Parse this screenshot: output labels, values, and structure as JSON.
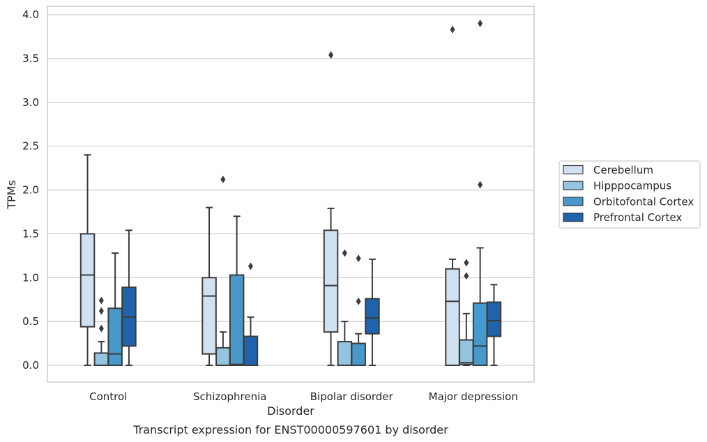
{
  "chart_data": {
    "type": "box",
    "xlabel": "Disorder",
    "ylabel": "TPMs",
    "caption": "Transcript expression for ENST00000597601 by disorder",
    "ylim": [
      -0.18,
      4.1
    ],
    "yticks": [
      "0.0",
      "0.5",
      "1.0",
      "1.5",
      "2.0",
      "2.5",
      "3.0",
      "3.5",
      "4.0"
    ],
    "grid": true,
    "legend_position": "right",
    "categories": [
      "Control",
      "Schizophrenia",
      "Bipolar disorder",
      "Major depression"
    ],
    "series": [
      {
        "name": "Cerebellum",
        "color": "#d0e1f2",
        "boxes": [
          {
            "whisker_low": 0.0,
            "q1": 0.44,
            "median": 1.03,
            "q3": 1.5,
            "whisker_high": 2.4,
            "outliers": []
          },
          {
            "whisker_low": 0.0,
            "q1": 0.13,
            "median": 0.79,
            "q3": 1.0,
            "whisker_high": 1.8,
            "outliers": []
          },
          {
            "whisker_low": 0.0,
            "q1": 0.38,
            "median": 0.91,
            "q3": 1.54,
            "whisker_high": 1.79,
            "outliers": [
              3.54
            ]
          },
          {
            "whisker_low": 0.0,
            "q1": 0.0,
            "median": 0.73,
            "q3": 1.1,
            "whisker_high": 1.21,
            "outliers": [
              3.83
            ]
          }
        ]
      },
      {
        "name": "Hipppocampus",
        "color": "#94c4df",
        "boxes": [
          {
            "whisker_low": 0.0,
            "q1": 0.0,
            "median": 0.0,
            "q3": 0.14,
            "whisker_high": 0.27,
            "outliers": [
              0.42,
              0.62,
              0.74
            ]
          },
          {
            "whisker_low": 0.0,
            "q1": 0.0,
            "median": 0.0,
            "q3": 0.2,
            "whisker_high": 0.38,
            "outliers": [
              2.12
            ]
          },
          {
            "whisker_low": 0.0,
            "q1": 0.0,
            "median": 0.0,
            "q3": 0.27,
            "whisker_high": 0.5,
            "outliers": [
              1.28
            ]
          },
          {
            "whisker_low": 0.0,
            "q1": 0.01,
            "median": 0.03,
            "q3": 0.29,
            "whisker_high": 0.59,
            "outliers": [
              1.02,
              1.17
            ]
          }
        ]
      },
      {
        "name": "Orbitofontal Cortex",
        "color": "#4a98c9",
        "boxes": [
          {
            "whisker_low": 0.0,
            "q1": 0.0,
            "median": 0.13,
            "q3": 0.65,
            "whisker_high": 1.28,
            "outliers": []
          },
          {
            "whisker_low": 0.0,
            "q1": 0.0,
            "median": 0.01,
            "q3": 1.03,
            "whisker_high": 1.7,
            "outliers": []
          },
          {
            "whisker_low": 0.0,
            "q1": 0.0,
            "median": 0.0,
            "q3": 0.25,
            "whisker_high": 0.36,
            "outliers": [
              0.73,
              1.22
            ]
          },
          {
            "whisker_low": 0.0,
            "q1": 0.0,
            "median": 0.22,
            "q3": 0.71,
            "whisker_high": 1.34,
            "outliers": [
              2.06,
              3.9
            ]
          }
        ]
      },
      {
        "name": "Prefrontal Cortex",
        "color": "#2163aa",
        "boxes": [
          {
            "whisker_low": 0.0,
            "q1": 0.22,
            "median": 0.55,
            "q3": 0.89,
            "whisker_high": 1.54,
            "outliers": []
          },
          {
            "whisker_low": 0.0,
            "q1": 0.0,
            "median": 0.0,
            "q3": 0.33,
            "whisker_high": 0.55,
            "outliers": [
              1.13
            ]
          },
          {
            "whisker_low": 0.0,
            "q1": 0.36,
            "median": 0.54,
            "q3": 0.76,
            "whisker_high": 1.21,
            "outliers": []
          },
          {
            "whisker_low": 0.0,
            "q1": 0.33,
            "median": 0.51,
            "q3": 0.72,
            "whisker_high": 0.92,
            "outliers": []
          }
        ]
      }
    ]
  }
}
